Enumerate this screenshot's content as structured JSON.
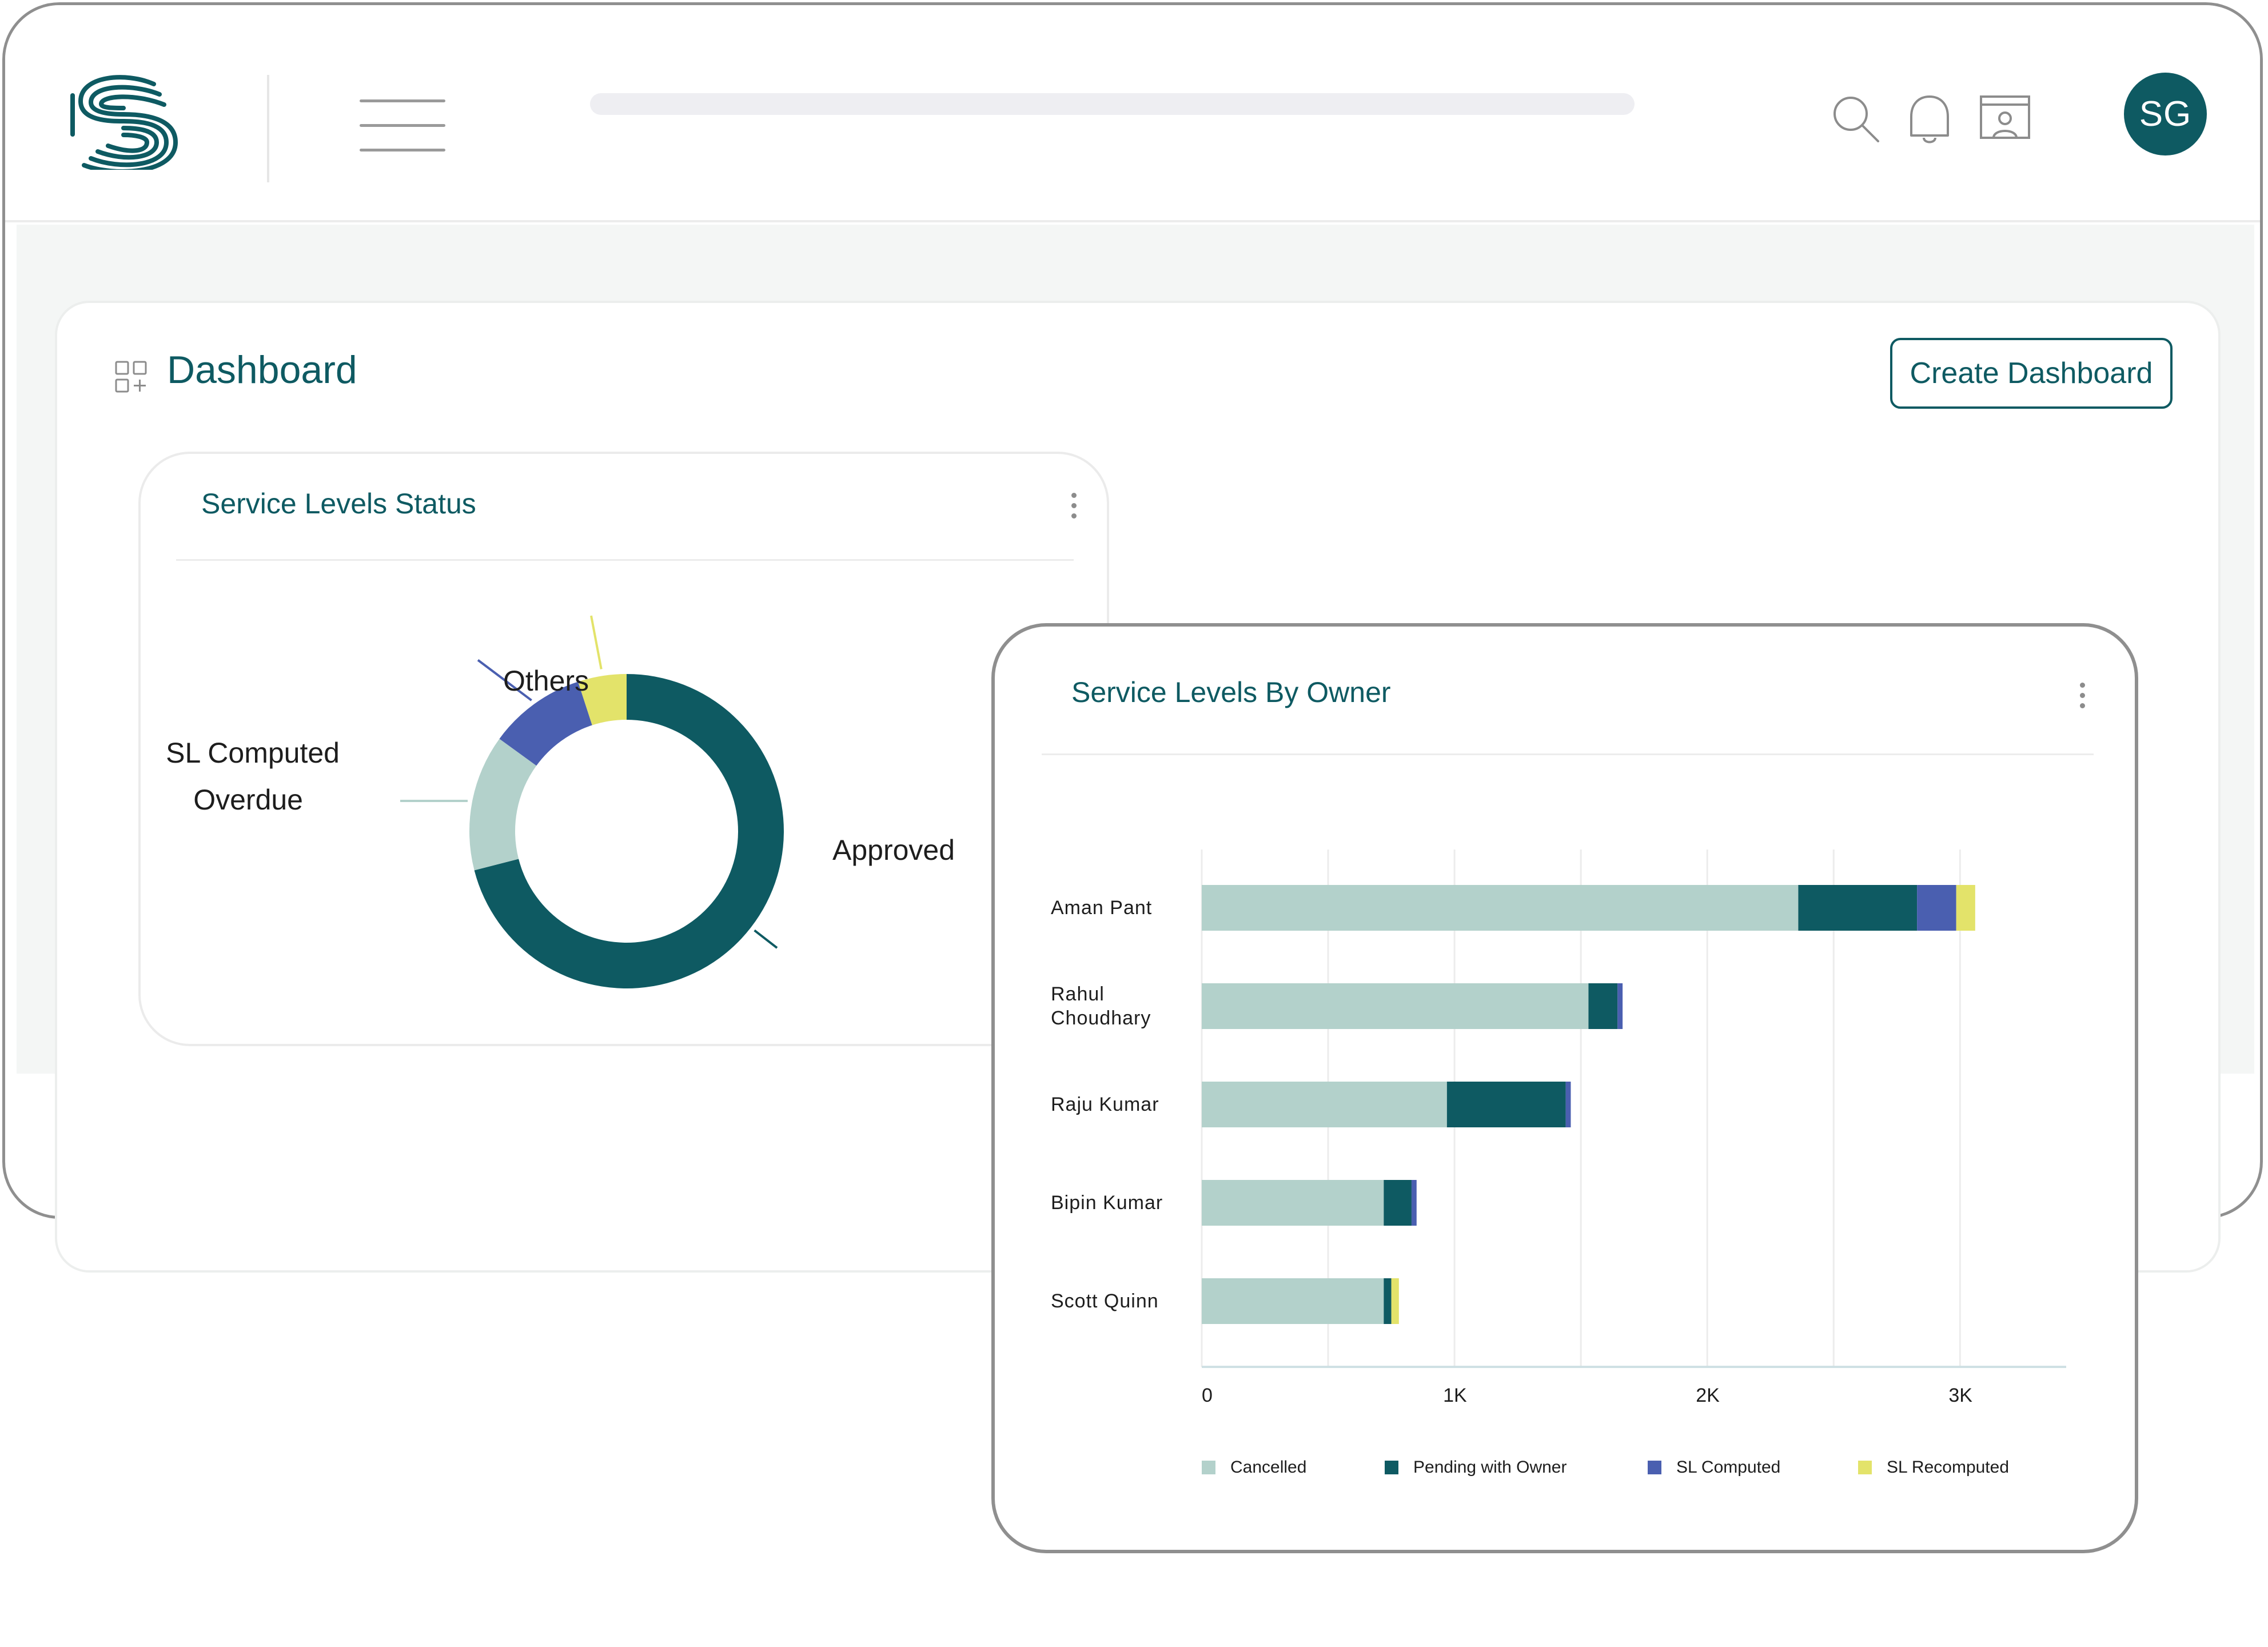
{
  "app": {
    "avatar_initials": "SG",
    "brand_color": "#0e5a62",
    "icons": {
      "logo": "brand-logo",
      "menu": "hamburger-menu-icon",
      "search": "search-icon",
      "notifications": "bell-icon",
      "profile_window": "profile-window-icon",
      "dashboard": "dashboard-grid-icon"
    }
  },
  "page": {
    "title": "Dashboard",
    "create_button_label": "Create Dashboard"
  },
  "status_card": {
    "title": "Service Levels Status",
    "chart_data": {
      "type": "pie",
      "style": "donut",
      "labels": [
        "Approved",
        "Overdue",
        "SL Computed",
        "Others"
      ],
      "values": [
        71,
        14,
        10,
        5
      ],
      "colors": [
        "#0e5a62",
        "#b3d1cb",
        "#4a5fb0",
        "#e3e36a"
      ]
    }
  },
  "owner_card": {
    "title": "Service Levels By Owner",
    "chart_data": {
      "type": "bar",
      "orientation": "horizontal",
      "stacked": true,
      "categories": [
        "Aman Pant",
        "Rahul Choudhary",
        "Raju Kumar",
        "Bipin Kumar",
        "Scott Quinn"
      ],
      "series": [
        {
          "name": "Cancelled",
          "color": "#b3d1cb",
          "values": [
            2360,
            1530,
            970,
            720,
            720
          ]
        },
        {
          "name": "Pending with Owner",
          "color": "#0e5a62",
          "values": [
            470,
            115,
            470,
            110,
            30
          ]
        },
        {
          "name": "SL Computed",
          "color": "#4a5fb0",
          "values": [
            155,
            20,
            20,
            20,
            0
          ]
        },
        {
          "name": "SL Recomputed",
          "color": "#e3e36a",
          "values": [
            75,
            0,
            0,
            0,
            30
          ]
        }
      ],
      "xlim": [
        0,
        3420
      ],
      "x_ticks": [
        0,
        1000,
        2000,
        3000
      ],
      "x_tick_labels": [
        "0",
        "1K",
        "2K",
        "3K"
      ],
      "grid": true,
      "legend_position": "bottom"
    }
  }
}
